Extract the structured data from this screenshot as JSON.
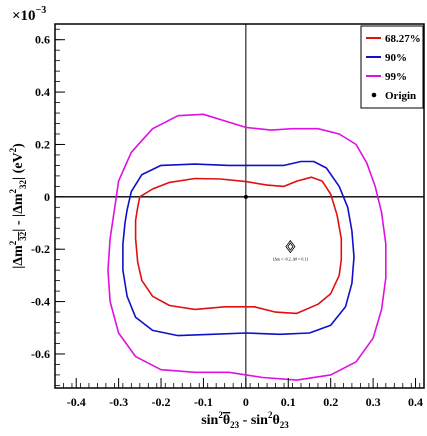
{
  "chart_data": {
    "type": "line",
    "exponent_label": "×10",
    "exponent_power": "−3",
    "xlim": [
      -0.45,
      0.42
    ],
    "ylim": [
      -0.73,
      0.66
    ],
    "x_ticks": [
      -0.4,
      -0.3,
      -0.2,
      -0.1,
      0,
      0.1,
      0.2,
      0.3,
      0.4
    ],
    "x_tick_labels": [
      "-0.4",
      "-0.3",
      "-0.2",
      "-0.1",
      "0",
      "0.1",
      "0.2",
      "0.3",
      "0.4"
    ],
    "y_ticks": [
      0.6,
      0.4,
      0.2,
      0,
      -0.2,
      -0.4,
      -0.6
    ],
    "y_tick_labels": [
      "0.6",
      "0.4",
      "0.2",
      "0",
      "-0.2",
      "-0.4",
      "-0.6"
    ],
    "xlabel": {
      "sin_a": "sin",
      "theta_bar": "θ",
      "sub_a": "23",
      "mid": " - sin",
      "theta": "θ",
      "sub_b": "23",
      "sup": "2"
    },
    "ylabel": {
      "abs_open": "|Δm",
      "bar_sub": "32",
      "mid": "| - |Δm",
      "sub": "32",
      "unit": "| (eV",
      "unit_close": ")",
      "sup": "2"
    },
    "legend": {
      "position": "top-right",
      "entries": [
        {
          "label": "68.27%",
          "color": "#e01010",
          "marker": "line"
        },
        {
          "label": "90%",
          "color": "#1010c8",
          "marker": "line"
        },
        {
          "label": "99%",
          "color": "#e010e0",
          "marker": "line"
        },
        {
          "label": "Origin",
          "color": "#000000",
          "marker": "dot"
        }
      ]
    },
    "series": [
      {
        "name": "68.27%",
        "color": "#e01010",
        "points": [
          [
            -0.25,
            0.0
          ],
          [
            -0.22,
            0.03
          ],
          [
            -0.18,
            0.055
          ],
          [
            -0.12,
            0.07
          ],
          [
            -0.06,
            0.068
          ],
          [
            0.0,
            0.058
          ],
          [
            0.05,
            0.045
          ],
          [
            0.09,
            0.04
          ],
          [
            0.12,
            0.06
          ],
          [
            0.155,
            0.075
          ],
          [
            0.18,
            0.06
          ],
          [
            0.2,
            0.01
          ],
          [
            0.215,
            -0.07
          ],
          [
            0.225,
            -0.16
          ],
          [
            0.225,
            -0.24
          ],
          [
            0.22,
            -0.3
          ],
          [
            0.2,
            -0.37
          ],
          [
            0.17,
            -0.41
          ],
          [
            0.12,
            -0.445
          ],
          [
            0.07,
            -0.44
          ],
          [
            0.02,
            -0.42
          ],
          [
            -0.05,
            -0.42
          ],
          [
            -0.12,
            -0.43
          ],
          [
            -0.18,
            -0.415
          ],
          [
            -0.22,
            -0.38
          ],
          [
            -0.245,
            -0.32
          ],
          [
            -0.255,
            -0.25
          ],
          [
            -0.26,
            -0.16
          ],
          [
            -0.26,
            -0.09
          ],
          [
            -0.255,
            -0.04
          ],
          [
            -0.25,
            0.0
          ]
        ]
      },
      {
        "name": "90%",
        "color": "#1010c8",
        "points": [
          [
            -0.28,
            -0.05
          ],
          [
            -0.27,
            0.02
          ],
          [
            -0.245,
            0.085
          ],
          [
            -0.2,
            0.12
          ],
          [
            -0.12,
            0.125
          ],
          [
            -0.04,
            0.12
          ],
          [
            0.03,
            0.12
          ],
          [
            0.09,
            0.12
          ],
          [
            0.13,
            0.135
          ],
          [
            0.16,
            0.135
          ],
          [
            0.19,
            0.11
          ],
          [
            0.22,
            0.04
          ],
          [
            0.24,
            -0.04
          ],
          [
            0.25,
            -0.13
          ],
          [
            0.255,
            -0.23
          ],
          [
            0.25,
            -0.33
          ],
          [
            0.235,
            -0.42
          ],
          [
            0.2,
            -0.49
          ],
          [
            0.15,
            -0.52
          ],
          [
            0.08,
            -0.525
          ],
          [
            0.0,
            -0.52
          ],
          [
            -0.08,
            -0.525
          ],
          [
            -0.16,
            -0.53
          ],
          [
            -0.22,
            -0.51
          ],
          [
            -0.26,
            -0.46
          ],
          [
            -0.28,
            -0.38
          ],
          [
            -0.29,
            -0.28
          ],
          [
            -0.29,
            -0.18
          ],
          [
            -0.285,
            -0.1
          ],
          [
            -0.28,
            -0.05
          ]
        ]
      },
      {
        "name": "99%",
        "color": "#e010e0",
        "points": [
          [
            -0.31,
            -0.05
          ],
          [
            -0.3,
            0.06
          ],
          [
            -0.27,
            0.17
          ],
          [
            -0.22,
            0.26
          ],
          [
            -0.16,
            0.31
          ],
          [
            -0.1,
            0.315
          ],
          [
            -0.05,
            0.29
          ],
          [
            0.0,
            0.265
          ],
          [
            0.06,
            0.255
          ],
          [
            0.11,
            0.26
          ],
          [
            0.17,
            0.26
          ],
          [
            0.22,
            0.24
          ],
          [
            0.26,
            0.2
          ],
          [
            0.285,
            0.13
          ],
          [
            0.305,
            0.04
          ],
          [
            0.32,
            -0.06
          ],
          [
            0.33,
            -0.18
          ],
          [
            0.33,
            -0.31
          ],
          [
            0.32,
            -0.43
          ],
          [
            0.3,
            -0.54
          ],
          [
            0.26,
            -0.63
          ],
          [
            0.2,
            -0.68
          ],
          [
            0.12,
            -0.7
          ],
          [
            0.04,
            -0.69
          ],
          [
            -0.04,
            -0.67
          ],
          [
            -0.12,
            -0.67
          ],
          [
            -0.2,
            -0.66
          ],
          [
            -0.26,
            -0.61
          ],
          [
            -0.3,
            -0.52
          ],
          [
            -0.32,
            -0.4
          ],
          [
            -0.325,
            -0.28
          ],
          [
            -0.32,
            -0.16
          ],
          [
            -0.31,
            -0.05
          ]
        ]
      }
    ],
    "origin_point": [
      0.0,
      0.0
    ],
    "annotation": {
      "x": 0.105,
      "y": -0.19,
      "text": "[Δm = -0.2, Δθ = 0.1]"
    }
  }
}
